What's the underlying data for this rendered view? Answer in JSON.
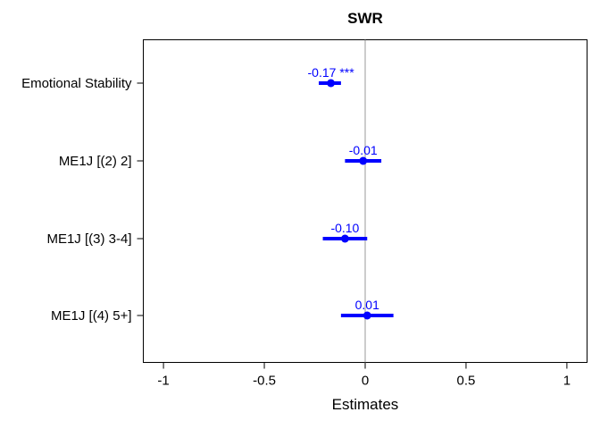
{
  "chart_data": {
    "type": "scatter",
    "subtype": "forest-plot",
    "title": "SWR",
    "xlabel": "Estimates",
    "ylabel": "",
    "xlim": [
      -1.1,
      1.1
    ],
    "x_ticks": [
      -1,
      -0.5,
      0,
      0.5,
      1
    ],
    "x_tick_labels": [
      "-1",
      "-0.5",
      "0",
      "0.5",
      "1"
    ],
    "grid": false,
    "reference_line": 0,
    "color": "#0000ff",
    "terms": [
      {
        "label": "Emotional Stability",
        "estimate": -0.17,
        "ci_low": -0.23,
        "ci_high": -0.12,
        "estimate_label": "-0.17 ***"
      },
      {
        "label": "ME1J [(2) 2]",
        "estimate": -0.01,
        "ci_low": -0.1,
        "ci_high": 0.08,
        "estimate_label": "-0.01"
      },
      {
        "label": "ME1J [(3) 3-4]",
        "estimate": -0.1,
        "ci_low": -0.21,
        "ci_high": 0.01,
        "estimate_label": "-0.10"
      },
      {
        "label": "ME1J [(4) 5+]",
        "estimate": 0.01,
        "ci_low": -0.12,
        "ci_high": 0.14,
        "estimate_label": "0.01"
      }
    ]
  }
}
